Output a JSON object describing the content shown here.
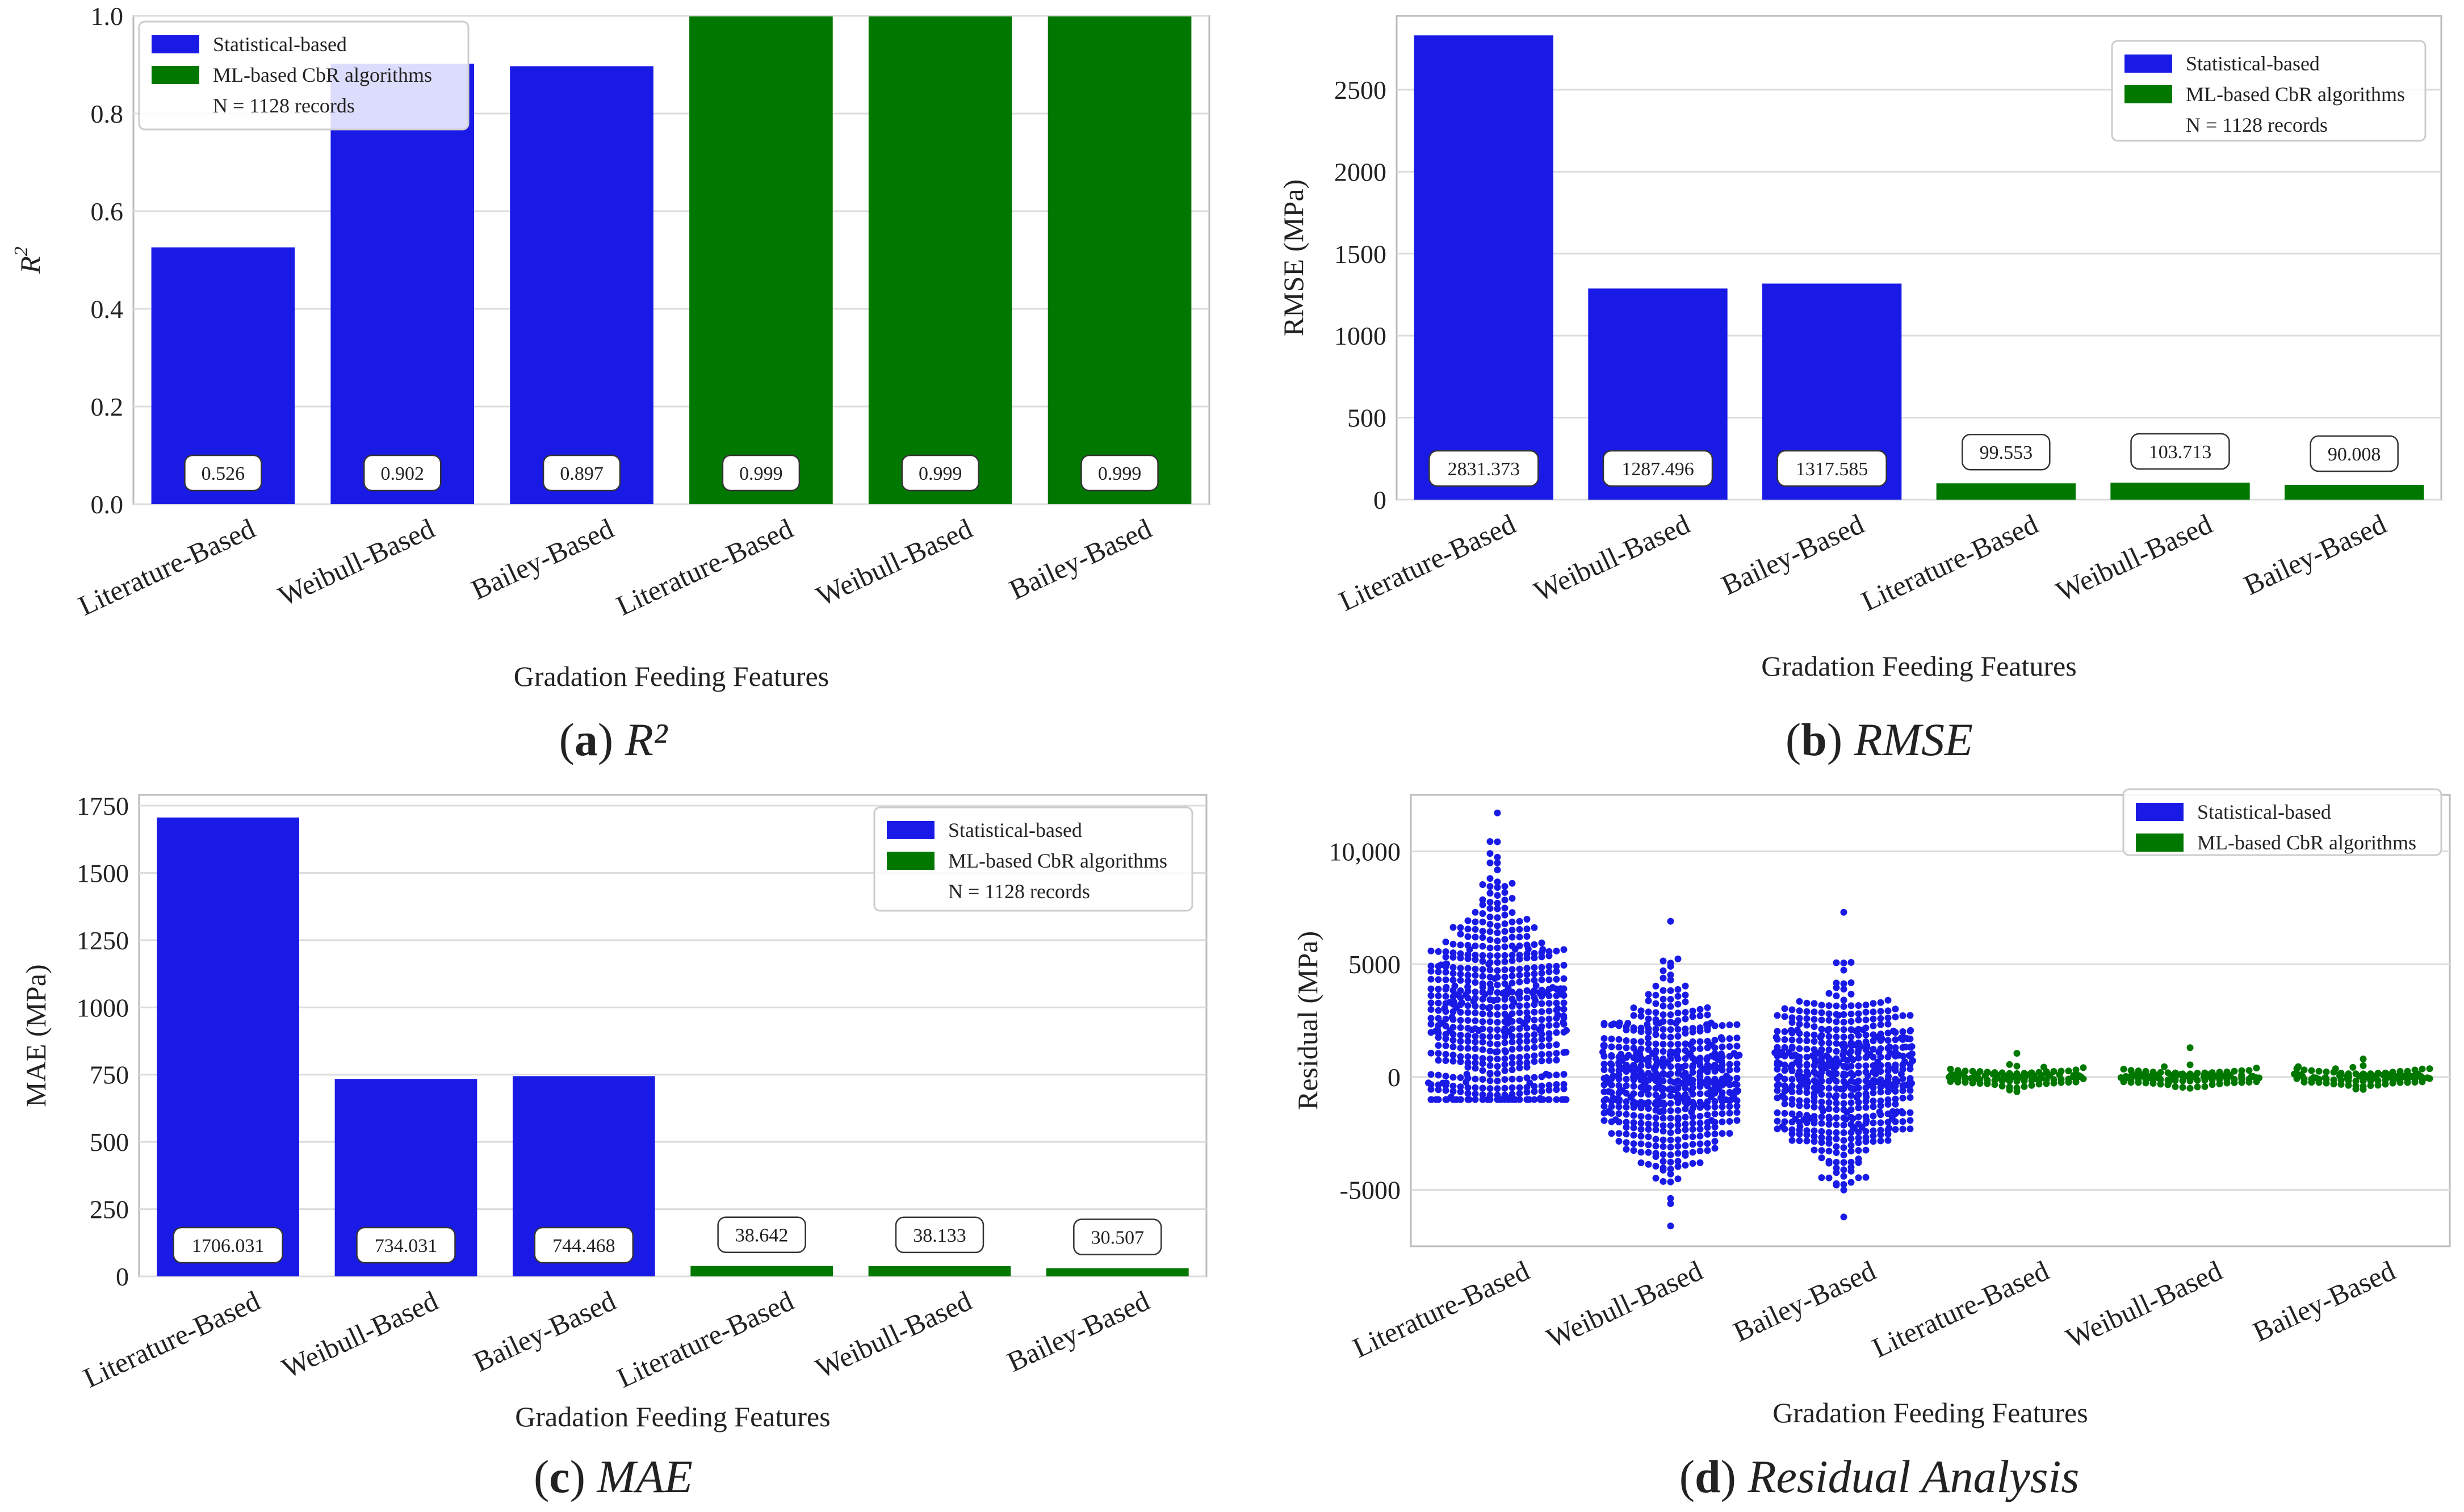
{
  "colors": {
    "statistical": "#1a1ae6",
    "ml": "#007800",
    "grid": "#dcdcdc",
    "frame": "#bbbbbb"
  },
  "legend": {
    "statistical": "Statistical-based",
    "ml": "ML-based CbR algorithms",
    "records": "N = 1128 records"
  },
  "xlabel": "Gradation Feeding Features",
  "chart_data": [
    {
      "id": "a",
      "type": "bar",
      "caption": {
        "letter": "a",
        "paren_open": "(",
        "paren_close": ")",
        "title": "R²"
      },
      "ylabel": "R",
      "ylabel_sup": "2",
      "categories": [
        "Literature-Based",
        "Weibull-Based",
        "Bailey-Based",
        "Literature-Based",
        "Weibull-Based",
        "Bailey-Based"
      ],
      "groups": [
        "Statistical-based",
        "Statistical-based",
        "Statistical-based",
        "ML-based CbR algorithms",
        "ML-based CbR algorithms",
        "ML-based CbR algorithms"
      ],
      "values": [
        0.526,
        0.902,
        0.897,
        0.999,
        0.999,
        0.999
      ],
      "labels": [
        "0.526",
        "0.902",
        "0.897",
        "0.999",
        "0.999",
        "0.999"
      ],
      "ylim": [
        0,
        1.0
      ],
      "yticks": [
        0,
        0.2,
        0.4,
        0.6,
        0.8,
        1.0
      ],
      "ytick_labels": [
        "0.0",
        "0.2",
        "0.4",
        "0.6",
        "0.8",
        "1.0"
      ],
      "legend_position": "top-left"
    },
    {
      "id": "b",
      "type": "bar",
      "caption": {
        "letter": "b",
        "paren_open": "(",
        "paren_close": ")",
        "title": "RMSE"
      },
      "ylabel": "RMSE (MPa)",
      "categories": [
        "Literature-Based",
        "Weibull-Based",
        "Bailey-Based",
        "Literature-Based",
        "Weibull-Based",
        "Bailey-Based"
      ],
      "groups": [
        "Statistical-based",
        "Statistical-based",
        "Statistical-based",
        "ML-based CbR algorithms",
        "ML-based CbR algorithms",
        "ML-based CbR algorithms"
      ],
      "values": [
        2831.373,
        1287.496,
        1317.585,
        99.553,
        103.713,
        90.008
      ],
      "labels": [
        "2831.373",
        "1287.496",
        "1317.585",
        "99.553",
        "103.713",
        "90.008"
      ],
      "ylim": [
        0,
        2950
      ],
      "yticks": [
        0,
        500,
        1000,
        1500,
        2000,
        2500
      ],
      "ytick_labels": [
        "0",
        "500",
        "1000",
        "1500",
        "2000",
        "2500"
      ],
      "legend_position": "top-right"
    },
    {
      "id": "c",
      "type": "bar",
      "caption": {
        "letter": "c",
        "paren_open": "(",
        "paren_close": ")",
        "title": "MAE"
      },
      "ylabel": "MAE (MPa)",
      "categories": [
        "Literature-Based",
        "Weibull-Based",
        "Bailey-Based",
        "Literature-Based",
        "Weibull-Based",
        "Bailey-Based"
      ],
      "groups": [
        "Statistical-based",
        "Statistical-based",
        "Statistical-based",
        "ML-based CbR algorithms",
        "ML-based CbR algorithms",
        "ML-based CbR algorithms"
      ],
      "values": [
        1706.031,
        734.031,
        744.468,
        38.642,
        38.133,
        30.507
      ],
      "labels": [
        "1706.031",
        "734.031",
        "744.468",
        "38.642",
        "38.133",
        "30.507"
      ],
      "ylim": [
        0,
        1790
      ],
      "yticks": [
        0,
        250,
        500,
        750,
        1000,
        1250,
        1500,
        1750
      ],
      "ytick_labels": [
        "0",
        "250",
        "500",
        "750",
        "1000",
        "1250",
        "1500",
        "1750"
      ],
      "legend_position": "top-right"
    },
    {
      "id": "d",
      "type": "scatter",
      "caption": {
        "letter": "d",
        "paren_open": "(",
        "paren_close": ")",
        "title": "Residual Analysis"
      },
      "ylabel": "Residual (MPa)",
      "categories": [
        "Literature-Based",
        "Weibull-Based",
        "Bailey-Based",
        "Literature-Based",
        "Weibull-Based",
        "Bailey-Based"
      ],
      "groups": [
        "Statistical-based",
        "Statistical-based",
        "Statistical-based",
        "ML-based CbR algorithms",
        "ML-based CbR algorithms",
        "ML-based CbR algorithms"
      ],
      "ylim": [
        -7500,
        12500
      ],
      "yticks": [
        -5000,
        0,
        5000,
        10000
      ],
      "ytick_labels": [
        "-5000",
        "0",
        "5000",
        "10,000"
      ],
      "residual_ranges": [
        {
          "min": -1000,
          "max": 11700,
          "center": 2700,
          "spread": 2800
        },
        {
          "min": -6600,
          "max": 6900,
          "center": 0,
          "spread": 1900
        },
        {
          "min": -6200,
          "max": 7300,
          "center": 0,
          "spread": 2000
        },
        {
          "min": -650,
          "max": 1050,
          "center": 0,
          "spread": 220
        },
        {
          "min": -500,
          "max": 1300,
          "center": 0,
          "spread": 200
        },
        {
          "min": -550,
          "max": 800,
          "center": 0,
          "spread": 190
        }
      ],
      "legend_position": "top-right"
    }
  ]
}
